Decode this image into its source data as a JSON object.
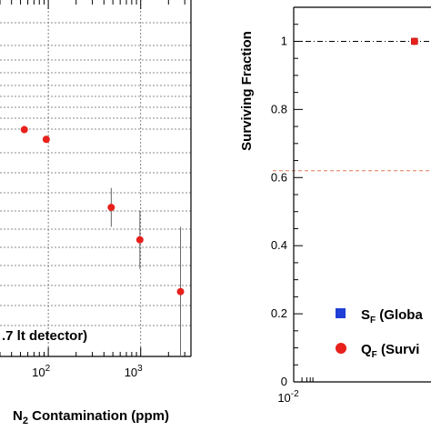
{
  "chart_data": [
    {
      "type": "scatter",
      "xlabel": "N",
      "xlabel_sub": "2",
      "xlabel_rest": " Contamination (ppm)",
      "xscale": "log",
      "xlim": [
        30,
        3500
      ],
      "ylim": [
        0,
        1.1
      ],
      "grid": true,
      "x_tick_labels": [
        {
          "base": "10",
          "exp": "2",
          "value": 100
        },
        {
          "base": "10",
          "exp": "3",
          "value": 1000
        }
      ],
      "annotation": ".7 lt detector)",
      "marker_color": "#e8201b",
      "series": [
        {
          "points": [
            {
              "x": 55,
              "y": 0.7,
              "err": 0.0
            },
            {
              "x": 95,
              "y": 0.67,
              "err": 0.0
            },
            {
              "x": 480,
              "y": 0.46,
              "err": 0.06
            },
            {
              "x": 980,
              "y": 0.36,
              "err": 0.09
            },
            {
              "x": 2700,
              "y": 0.2,
              "err": 0.2
            }
          ]
        }
      ]
    },
    {
      "type": "scatter",
      "ylabel": "Surviving Fraction",
      "xscale": "log",
      "xlim": [
        0.01,
        1000
      ],
      "ylim": [
        0,
        1.1
      ],
      "y_ticks": [
        0,
        0.2,
        0.4,
        0.6,
        0.8,
        1.0
      ],
      "y_tick_labels": [
        "0",
        "0.2",
        "0.4",
        "0.6",
        "0.8",
        "1"
      ],
      "x_tick_labels": [
        {
          "base": "10",
          "exp": "-2",
          "value": 0.01
        }
      ],
      "reference_lines": [
        {
          "y": 1.0,
          "style": "dash-dot",
          "color": "#000000"
        },
        {
          "y": 0.62,
          "style": "dashed",
          "color": "#e07a50"
        }
      ],
      "series": [
        {
          "name": "S",
          "name_sub": "F",
          "name_rest": " (Globa",
          "marker": "square",
          "color": "#1f3fd6",
          "points": [
            {
              "x": 250,
              "y": 1.0
            }
          ]
        },
        {
          "name": "Q",
          "name_sub": "F",
          "name_rest": " (Survi",
          "marker": "circle",
          "color": "#e8201b",
          "points": []
        }
      ],
      "extra_marker": {
        "x": 250,
        "y": 1.0,
        "color": "#e8201b"
      }
    }
  ]
}
